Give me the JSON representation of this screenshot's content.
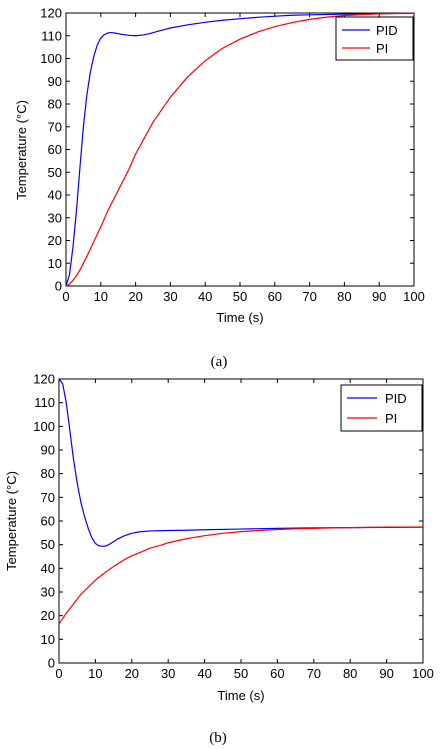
{
  "colors": {
    "pid": "#0000ff",
    "pi": "#ff0000",
    "axis": "#000000"
  },
  "chart_data": [
    {
      "type": "line",
      "caption": "(a)",
      "xlabel": "Time (s)",
      "ylabel": "Temperature (°C)",
      "xlim": [
        0,
        100
      ],
      "ylim": [
        0,
        120
      ],
      "xticks": [
        0,
        10,
        20,
        30,
        40,
        50,
        60,
        70,
        80,
        90,
        100
      ],
      "yticks": [
        0,
        10,
        20,
        30,
        40,
        50,
        60,
        70,
        80,
        90,
        100,
        110,
        120
      ],
      "grid": false,
      "legend_position": "top-right",
      "series": [
        {
          "name": "PID",
          "color": "#0000ff",
          "x": [
            0,
            1,
            2,
            3,
            4,
            5,
            6,
            7,
            8,
            9,
            10,
            11,
            12,
            13,
            14,
            15,
            16,
            18,
            20,
            22,
            24,
            26,
            28,
            30,
            35,
            40,
            45,
            50,
            55,
            60,
            65,
            70,
            80,
            90,
            100
          ],
          "y": [
            0,
            5,
            17,
            33,
            52,
            70,
            84,
            94,
            101,
            106,
            109,
            110.5,
            111.2,
            111.4,
            111.2,
            110.9,
            110.6,
            110.2,
            110,
            110.3,
            110.9,
            111.8,
            112.6,
            113.4,
            114.8,
            115.9,
            116.8,
            117.5,
            118.1,
            118.6,
            119,
            119.2,
            119.5,
            119.7,
            119.8
          ]
        },
        {
          "name": "PI",
          "color": "#ff0000",
          "x": [
            0,
            1,
            2,
            3,
            4,
            6,
            8,
            10,
            12,
            15,
            18,
            20,
            25,
            30,
            35,
            40,
            45,
            50,
            55,
            60,
            65,
            70,
            75,
            80,
            85,
            90,
            95,
            100
          ],
          "y": [
            0,
            0.8,
            2.5,
            4.5,
            7,
            13,
            19.5,
            26,
            33,
            42,
            51,
            58,
            72,
            83,
            92,
            99,
            104.5,
            108.5,
            111.6,
            114,
            115.8,
            117.2,
            118.2,
            118.9,
            119.3,
            119.6,
            119.8,
            119.9
          ]
        }
      ]
    },
    {
      "type": "line",
      "caption": "(b)",
      "xlabel": "Time (s)",
      "ylabel": "Temperature (°C)",
      "xlim": [
        0,
        100
      ],
      "ylim": [
        0,
        120
      ],
      "xticks": [
        0,
        10,
        20,
        30,
        40,
        50,
        60,
        70,
        80,
        90,
        100
      ],
      "yticks": [
        0,
        10,
        20,
        30,
        40,
        50,
        60,
        70,
        80,
        90,
        100,
        110,
        120
      ],
      "grid": false,
      "legend_position": "top-right",
      "series": [
        {
          "name": "PID",
          "color": "#0000ff",
          "x": [
            0,
            1,
            2,
            3,
            4,
            5,
            6,
            7,
            8,
            9,
            10,
            11,
            12,
            13,
            14,
            15,
            16,
            18,
            20,
            22,
            25,
            30,
            35,
            40,
            50,
            60,
            70,
            80,
            90,
            100
          ],
          "y": [
            120,
            118,
            110,
            98,
            86,
            76,
            68,
            62,
            57,
            53,
            50.5,
            49.5,
            49.3,
            49.5,
            50.3,
            51.3,
            52.3,
            53.8,
            54.8,
            55.4,
            55.8,
            56,
            56.1,
            56.3,
            56.6,
            56.9,
            57.1,
            57.2,
            57.3,
            57.4
          ]
        },
        {
          "name": "PI",
          "color": "#ff0000",
          "x": [
            0,
            2,
            4,
            6,
            8,
            10,
            12,
            15,
            18,
            20,
            22,
            25,
            28,
            30,
            35,
            40,
            45,
            50,
            55,
            60,
            65,
            70,
            75,
            80,
            85,
            90,
            95,
            100
          ],
          "y": [
            16.5,
            21,
            25,
            29,
            32,
            35,
            37.5,
            40.8,
            43.7,
            45.3,
            46.5,
            48.5,
            49.8,
            50.8,
            52.5,
            53.8,
            54.8,
            55.5,
            56,
            56.4,
            56.7,
            56.9,
            57.1,
            57.2,
            57.3,
            57.4,
            57.4,
            57.5
          ]
        }
      ]
    }
  ]
}
